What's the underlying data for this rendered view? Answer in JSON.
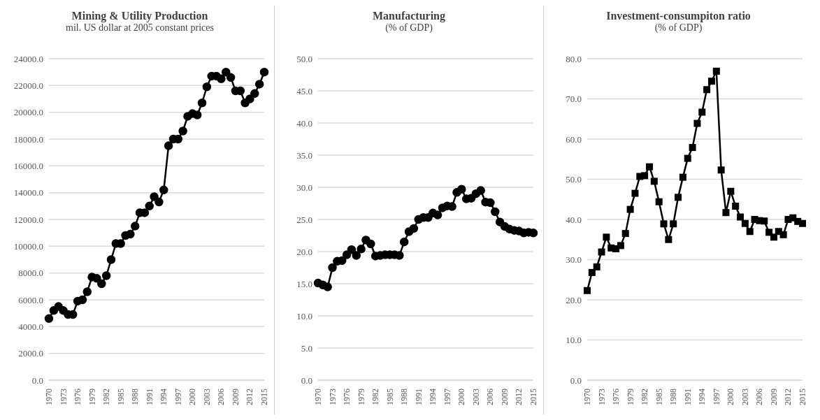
{
  "chart_data": [
    {
      "type": "line",
      "title": "Mining & Utility Production",
      "subtitle": "mil. US dollar at 2005 constant prices",
      "categories": [
        "1970",
        null,
        null,
        "1973",
        null,
        null,
        "1976",
        null,
        null,
        "1979",
        null,
        null,
        "1982",
        null,
        null,
        "1985",
        null,
        null,
        "1988",
        null,
        null,
        "1991",
        null,
        null,
        "1994",
        null,
        null,
        "1997",
        null,
        null,
        "2000",
        null,
        null,
        "2003",
        null,
        null,
        "2006",
        null,
        null,
        "2009",
        null,
        null,
        "2012",
        null,
        null,
        "2015"
      ],
      "series": [
        {
          "color": "#000000",
          "values": [
            4600,
            5200,
            5500,
            5200,
            4900,
            4900,
            5900,
            6000,
            6600,
            7700,
            7600,
            7200,
            7800,
            9000,
            10200,
            10200,
            10800,
            10900,
            11500,
            12500,
            12500,
            13000,
            13700,
            13300,
            14200,
            17500,
            18000,
            18000,
            18600,
            19700,
            19900,
            19800,
            20700,
            21900,
            22700,
            22700,
            22500,
            23000,
            22600,
            21600,
            21600,
            20700,
            21000,
            21400,
            22100,
            23000
          ]
        }
      ],
      "ylim": [
        0,
        24000
      ],
      "yticks": [
        {
          "value": 0,
          "label": "0.0"
        },
        {
          "value": 2000,
          "label": "2000.0"
        },
        {
          "value": 4000,
          "label": "4000.0"
        },
        {
          "value": 6000,
          "label": "6000.0"
        },
        {
          "value": 8000,
          "label": "8000.0"
        },
        {
          "value": 10000,
          "label": "10000.0"
        },
        {
          "value": 12000,
          "label": "12000.0"
        },
        {
          "value": 14000,
          "label": "14000.0"
        },
        {
          "value": 16000,
          "label": "16000.0"
        },
        {
          "value": 18000,
          "label": "18000.0"
        },
        {
          "value": 20000,
          "label": "20000.0"
        },
        {
          "value": 22000,
          "label": "22000.0"
        },
        {
          "value": 24000,
          "label": "24000.0"
        }
      ],
      "grid": "y",
      "legend": false,
      "marker": "circle",
      "line_style": "solid"
    },
    {
      "type": "line",
      "title": "Manufacturing",
      "subtitle": "(% of GDP)",
      "categories": [
        "1970",
        null,
        null,
        "1973",
        null,
        null,
        "1976",
        null,
        null,
        "1979",
        null,
        null,
        "1982",
        null,
        null,
        "1985",
        null,
        null,
        "1988",
        null,
        null,
        "1991",
        null,
        null,
        "1994",
        null,
        null,
        "1997",
        null,
        null,
        "2000",
        null,
        null,
        "2003",
        null,
        null,
        "2006",
        null,
        null,
        "2009",
        null,
        null,
        "2012",
        null,
        null,
        "2015"
      ],
      "series": [
        {
          "color": "#000000",
          "values": [
            15.1,
            14.8,
            14.5,
            17.5,
            18.5,
            18.6,
            19.5,
            20.3,
            19.4,
            20.4,
            21.8,
            21.2,
            19.3,
            19.4,
            19.5,
            19.5,
            19.5,
            19.4,
            21.5,
            23.1,
            23.6,
            25.0,
            25.3,
            25.3,
            26.0,
            25.7,
            26.8,
            27.1,
            27.0,
            29.2,
            29.7,
            28.2,
            28.3,
            29.0,
            29.5,
            27.7,
            27.6,
            26.2,
            24.6,
            23.9,
            23.5,
            23.3,
            23.2,
            22.9,
            23.0,
            22.9
          ]
        }
      ],
      "ylim": [
        0,
        50
      ],
      "yticks": [
        {
          "value": 0,
          "label": "0.0"
        },
        {
          "value": 5,
          "label": "5.0"
        },
        {
          "value": 10,
          "label": "10.0"
        },
        {
          "value": 15,
          "label": "15.0"
        },
        {
          "value": 20,
          "label": "20.0"
        },
        {
          "value": 25,
          "label": "25.0"
        },
        {
          "value": 30,
          "label": "30.0"
        },
        {
          "value": 35,
          "label": "35.0"
        },
        {
          "value": 40,
          "label": "40.0"
        },
        {
          "value": 45,
          "label": "45.0"
        },
        {
          "value": 50,
          "label": "50.0"
        }
      ],
      "grid": "y",
      "legend": false,
      "marker": "circle",
      "line_style": "solid"
    },
    {
      "type": "line",
      "title": "Investment-consumpiton  ratio",
      "subtitle": "(% of GDP)",
      "categories": [
        "1970",
        null,
        null,
        "1973",
        null,
        null,
        "1976",
        null,
        null,
        "1979",
        null,
        null,
        "1982",
        null,
        null,
        "1985",
        null,
        null,
        "1988",
        null,
        null,
        "1991",
        null,
        null,
        "1994",
        null,
        null,
        "1997",
        null,
        null,
        "2000",
        null,
        null,
        "2003",
        null,
        null,
        "2006",
        null,
        null,
        "2009",
        null,
        null,
        "2012",
        null,
        null,
        "2015"
      ],
      "series": [
        {
          "color": "#000000",
          "values": [
            22.3,
            26.8,
            28.2,
            31.9,
            35.6,
            32.9,
            32.7,
            33.5,
            36.5,
            42.5,
            46.5,
            50.7,
            50.9,
            53.1,
            49.5,
            44.4,
            38.9,
            35.0,
            38.9,
            45.5,
            50.5,
            55.2,
            57.9,
            63.9,
            66.7,
            72.3,
            74.4,
            76.9,
            52.3,
            41.7,
            47.0,
            43.3,
            40.6,
            39.0,
            37.0,
            40.0,
            39.7,
            39.6,
            36.8,
            35.6,
            37.0,
            36.2,
            40.0,
            40.4,
            39.5,
            39.0
          ]
        }
      ],
      "ylim": [
        0,
        80
      ],
      "yticks": [
        {
          "value": 0,
          "label": "0.0"
        },
        {
          "value": 10,
          "label": "10.0"
        },
        {
          "value": 20,
          "label": "20.0"
        },
        {
          "value": 30,
          "label": "30.0"
        },
        {
          "value": 40,
          "label": "40.0"
        },
        {
          "value": 50,
          "label": "50.0"
        },
        {
          "value": 60,
          "label": "60.0"
        },
        {
          "value": 70,
          "label": "70.0"
        },
        {
          "value": 80,
          "label": "80.0"
        }
      ],
      "grid": "y",
      "legend": false,
      "marker": "square",
      "line_style": "solid"
    }
  ]
}
